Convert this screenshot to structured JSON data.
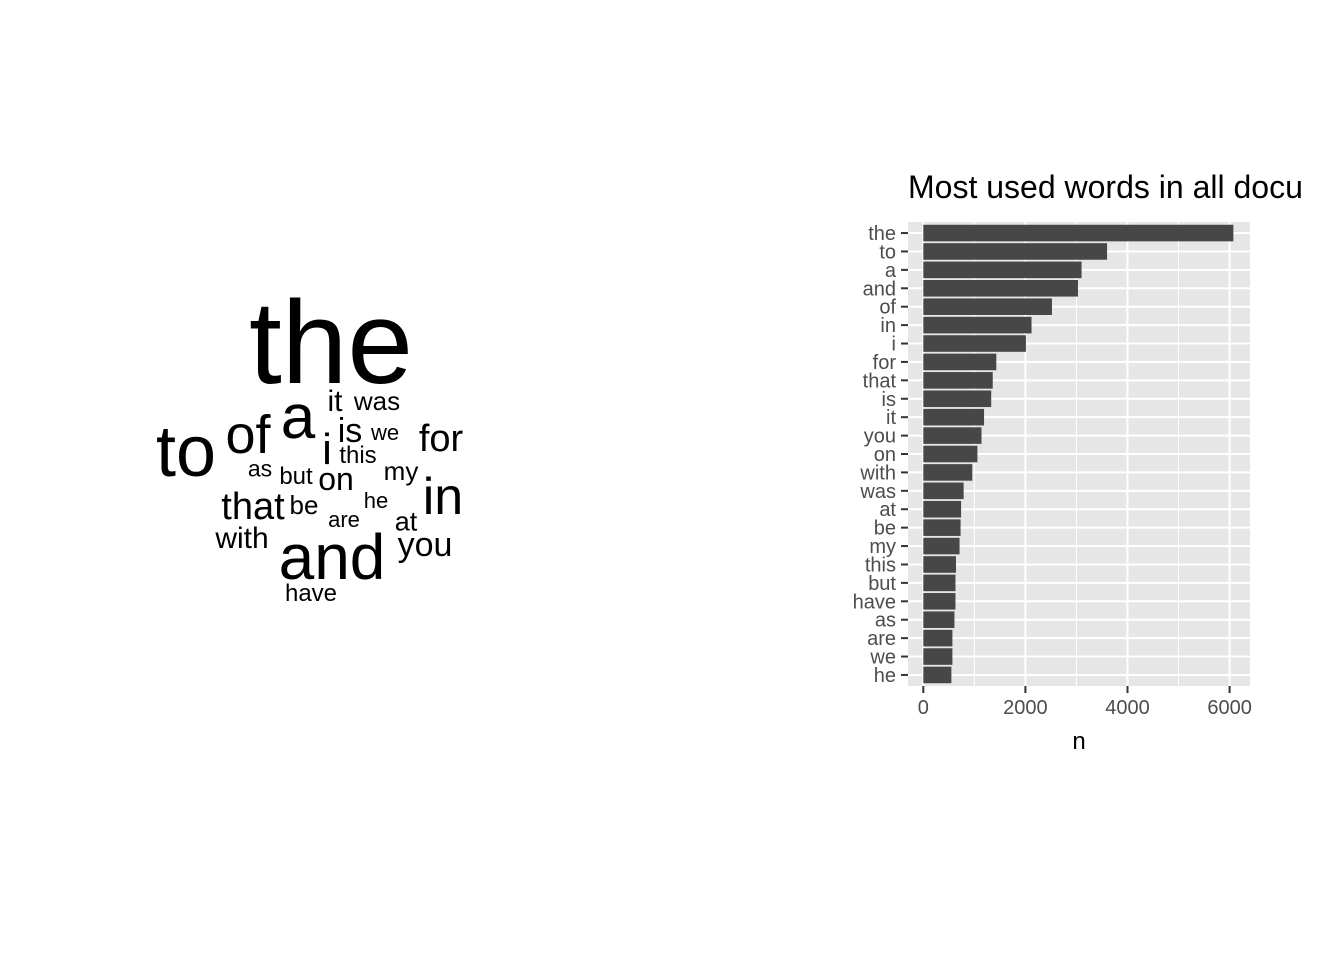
{
  "colors": {
    "panel_bg": "#E6E6E6",
    "bar": "#474747",
    "grid": "#FFFFFF",
    "tick_text": "#4D4D4D",
    "text": "#000000"
  },
  "wordcloud": {
    "words": [
      {
        "text": "the",
        "weight": 6074
      },
      {
        "text": "to",
        "weight": 3600
      },
      {
        "text": "a",
        "weight": 3100
      },
      {
        "text": "and",
        "weight": 3030
      },
      {
        "text": "of",
        "weight": 2520
      },
      {
        "text": "in",
        "weight": 2120
      },
      {
        "text": "i",
        "weight": 2010
      },
      {
        "text": "for",
        "weight": 1430
      },
      {
        "text": "that",
        "weight": 1360
      },
      {
        "text": "is",
        "weight": 1330
      },
      {
        "text": "it",
        "weight": 1190
      },
      {
        "text": "you",
        "weight": 1140
      },
      {
        "text": "on",
        "weight": 1060
      },
      {
        "text": "with",
        "weight": 960
      },
      {
        "text": "was",
        "weight": 790
      },
      {
        "text": "at",
        "weight": 740
      },
      {
        "text": "be",
        "weight": 730
      },
      {
        "text": "my",
        "weight": 710
      },
      {
        "text": "this",
        "weight": 640
      },
      {
        "text": "but",
        "weight": 630
      },
      {
        "text": "have",
        "weight": 630
      },
      {
        "text": "as",
        "weight": 610
      },
      {
        "text": "are",
        "weight": 570
      },
      {
        "text": "we",
        "weight": 570
      },
      {
        "text": "he",
        "weight": 550
      }
    ]
  },
  "chart_data": {
    "type": "bar",
    "orientation": "horizontal",
    "title": "Most used words in all docu",
    "xlabel": "n",
    "ylabel": "",
    "categories": [
      "the",
      "to",
      "a",
      "and",
      "of",
      "in",
      "i",
      "for",
      "that",
      "is",
      "it",
      "you",
      "on",
      "with",
      "was",
      "at",
      "be",
      "my",
      "this",
      "but",
      "have",
      "as",
      "are",
      "we",
      "he"
    ],
    "values": [
      6074,
      3600,
      3100,
      3030,
      2520,
      2120,
      2010,
      1430,
      1360,
      1330,
      1190,
      1140,
      1060,
      960,
      790,
      740,
      730,
      710,
      640,
      630,
      630,
      610,
      570,
      570,
      550
    ],
    "xlim": [
      -300,
      6400
    ],
    "xticks": [
      0,
      2000,
      4000,
      6000
    ],
    "x_tick_labels": [
      "0",
      "2000",
      "4000",
      "6000"
    ],
    "grid": true,
    "legend": "none"
  }
}
